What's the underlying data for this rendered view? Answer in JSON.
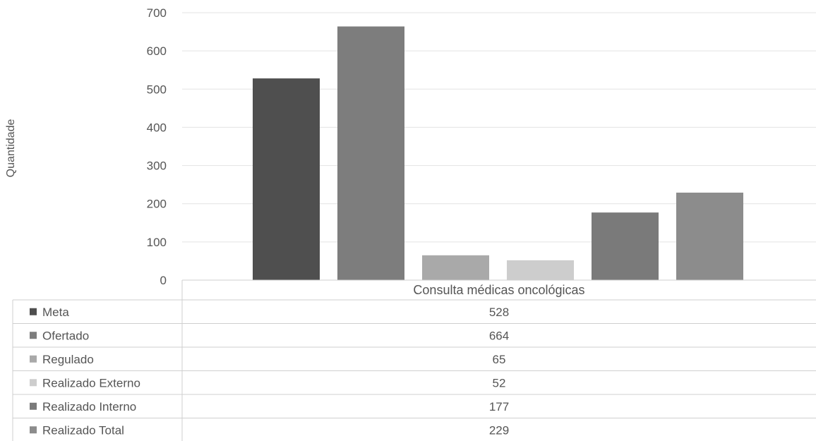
{
  "chart_data": {
    "type": "bar",
    "ylabel": "Quantidade",
    "ylim": [
      0,
      700
    ],
    "yticks": [
      0,
      100,
      200,
      300,
      400,
      500,
      600,
      700
    ],
    "grid": true,
    "categories": [
      "Consulta médicas oncológicas"
    ],
    "series": [
      {
        "name": "Meta",
        "values": [
          528
        ],
        "color": "#4f4f4f"
      },
      {
        "name": "Ofertado",
        "values": [
          664
        ],
        "color": "#7d7d7d"
      },
      {
        "name": "Regulado",
        "values": [
          65
        ],
        "color": "#a9a9a9"
      },
      {
        "name": "Realizado Externo",
        "values": [
          52
        ],
        "color": "#cdcdcd"
      },
      {
        "name": "Realizado Interno",
        "values": [
          177
        ],
        "color": "#7a7a7a"
      },
      {
        "name": "Realizado Total",
        "values": [
          229
        ],
        "color": "#8c8c8c"
      }
    ],
    "data_table": {
      "rows": [
        {
          "label": "Meta",
          "value": "528"
        },
        {
          "label": "Ofertado",
          "value": "664"
        },
        {
          "label": "Regulado",
          "value": "65"
        },
        {
          "label": "Realizado Externo",
          "value": "52"
        },
        {
          "label": "Realizado Interno",
          "value": "177"
        },
        {
          "label": "Realizado Total",
          "value": "229"
        }
      ]
    }
  }
}
